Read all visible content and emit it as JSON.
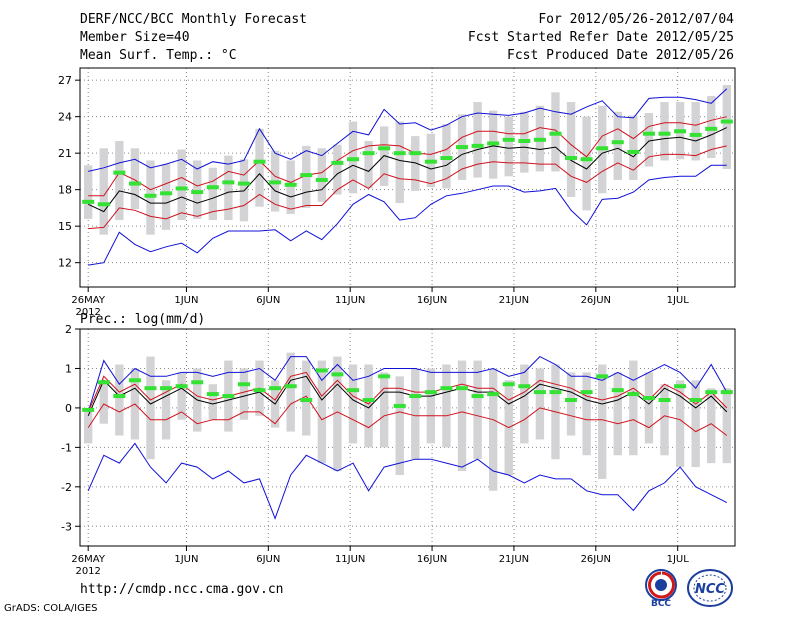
{
  "header": {
    "title": "DERF/NCC/BCC Monthly Forecast",
    "member_size": "Member Size=40",
    "variable": "Mean Surf. Temp.: °C",
    "period": "For 2012/05/26-2012/07/04",
    "fcst_start": "Fcst Started Refer Date 2012/05/25",
    "fcst_produced": "Fcst Produced Date 2012/05/26"
  },
  "footer": {
    "url": "http://cmdp.ncc.cma.gov.cn",
    "grads": "GrADS: COLA/IGES",
    "logo_bcc": "BCC",
    "logo_ncc": "NCC"
  },
  "colors": {
    "box": "#d3d3d6",
    "median": "#000000",
    "spread": "#d0121d",
    "extreme": "#1010d8",
    "observed": "#33e233",
    "grid": "#888888"
  },
  "chart_data": [
    {
      "type": "line",
      "title": "Mean Surf. Temp.: °C",
      "ylim": [
        10,
        28
      ],
      "yticks": [
        12,
        15,
        18,
        21,
        24,
        27
      ],
      "xlim": [
        0.5,
        40.5
      ],
      "xticks": [
        {
          "x": 1,
          "label": "26MAY"
        },
        {
          "x": 7,
          "label": "1JUN"
        },
        {
          "x": 12,
          "label": "6JUN"
        },
        {
          "x": 17,
          "label": "11JUN"
        },
        {
          "x": 22,
          "label": "16JUN"
        },
        {
          "x": 27,
          "label": "21JUN"
        },
        {
          "x": 32,
          "label": "26JUN"
        },
        {
          "x": 37,
          "label": "1JUL"
        }
      ],
      "year_label": "2012",
      "series": [
        {
          "name": "median",
          "values": [
            16.8,
            16.2,
            17.9,
            17.6,
            16.9,
            16.9,
            17.4,
            16.9,
            17.3,
            17.8,
            17.9,
            19.3,
            17.9,
            17.4,
            17.8,
            18.0,
            19.3,
            20.0,
            19.5,
            20.8,
            20.4,
            20.2,
            19.7,
            20.0,
            20.9,
            21.3,
            21.6,
            21.4,
            21.5,
            21.3,
            21.5,
            20.4,
            19.7,
            21.0,
            21.4,
            20.7,
            22.0,
            22.2,
            22.3,
            22.0,
            22.5,
            23.1
          ]
        },
        {
          "name": "upper",
          "values": [
            17.5,
            17.5,
            19.4,
            18.8,
            18.0,
            18.5,
            19.0,
            18.3,
            18.7,
            19.5,
            19.2,
            20.4,
            19.1,
            18.6,
            19.2,
            19.4,
            20.4,
            21.2,
            21.6,
            21.7,
            21.6,
            21.0,
            20.9,
            21.3,
            22.3,
            22.8,
            22.8,
            22.6,
            22.6,
            23.1,
            22.9,
            21.7,
            20.7,
            22.4,
            23.0,
            22.2,
            23.2,
            23.5,
            23.5,
            23.3,
            23.7,
            24.0
          ]
        },
        {
          "name": "lower",
          "values": [
            14.8,
            14.9,
            16.5,
            16.3,
            15.8,
            15.6,
            16.1,
            15.8,
            16.2,
            16.4,
            16.7,
            17.6,
            16.8,
            16.4,
            16.7,
            16.7,
            18.0,
            18.8,
            18.1,
            19.3,
            18.9,
            18.8,
            18.5,
            18.9,
            19.7,
            20.1,
            20.3,
            20.2,
            20.2,
            20.1,
            20.1,
            19.1,
            18.6,
            19.5,
            20.2,
            19.6,
            20.7,
            20.9,
            20.9,
            20.8,
            21.3,
            21.6
          ]
        },
        {
          "name": "max",
          "values": [
            19.5,
            19.8,
            20.2,
            20.5,
            19.8,
            20.1,
            20.5,
            19.7,
            20.3,
            20.1,
            20.4,
            23.0,
            21.0,
            20.5,
            21.2,
            20.8,
            21.8,
            22.8,
            22.5,
            24.6,
            23.4,
            23.5,
            22.9,
            23.3,
            24.0,
            24.3,
            24.2,
            24.1,
            24.3,
            24.7,
            24.4,
            24.2,
            24.8,
            25.3,
            24.0,
            23.9,
            25.5,
            25.6,
            25.6,
            25.4,
            25.1,
            26.3
          ]
        },
        {
          "name": "min",
          "values": [
            11.8,
            12.0,
            14.5,
            13.5,
            12.9,
            13.3,
            13.6,
            12.8,
            14.0,
            14.6,
            14.6,
            14.6,
            14.7,
            13.8,
            14.6,
            13.9,
            15.2,
            16.8,
            17.6,
            17.0,
            15.5,
            15.7,
            16.8,
            17.5,
            17.7,
            18.0,
            18.3,
            18.3,
            17.8,
            17.9,
            18.1,
            16.3,
            15.1,
            17.2,
            17.3,
            17.8,
            18.8,
            19.0,
            19.1,
            19.1,
            20.0,
            20.0
          ]
        },
        {
          "name": "box_top",
          "values": [
            20.0,
            21.4,
            22.0,
            21.4,
            20.4,
            20.1,
            21.3,
            20.4,
            19.8,
            20.8,
            20.5,
            23.0,
            21.2,
            20.4,
            21.6,
            21.4,
            21.7,
            23.6,
            22.0,
            23.2,
            23.6,
            22.4,
            22.6,
            23.4,
            24.2,
            25.2,
            24.5,
            24.0,
            24.4,
            24.9,
            26.0,
            25.2,
            24.0,
            24.9,
            24.4,
            24.1,
            24.3,
            25.2,
            25.2,
            25.2,
            25.7,
            26.6
          ]
        },
        {
          "name": "box_bottom",
          "values": [
            15.6,
            14.3,
            15.5,
            16.4,
            14.3,
            14.7,
            15.5,
            15.6,
            15.5,
            15.5,
            15.4,
            16.6,
            16.2,
            16.0,
            16.5,
            17.0,
            17.6,
            17.7,
            18.1,
            18.3,
            16.9,
            17.9,
            18.2,
            18.1,
            18.8,
            19.0,
            18.9,
            19.1,
            19.4,
            19.5,
            19.5,
            17.4,
            16.3,
            17.7,
            18.8,
            18.8,
            19.9,
            20.4,
            20.5,
            20.4,
            20.6,
            19.7
          ]
        },
        {
          "name": "observed",
          "values": [
            17.0,
            16.8,
            19.4,
            18.5,
            17.5,
            17.7,
            18.1,
            17.8,
            18.2,
            18.6,
            18.5,
            20.3,
            18.6,
            18.4,
            19.2,
            18.8,
            20.2,
            20.5,
            21.0,
            21.4,
            21.0,
            21.0,
            20.3,
            20.6,
            21.5,
            21.6,
            21.8,
            22.1,
            22.0,
            22.1,
            22.6,
            20.6,
            20.5,
            21.4,
            21.9,
            21.1,
            22.6,
            22.6,
            22.8,
            22.5,
            23.0,
            23.6
          ]
        }
      ]
    },
    {
      "type": "line",
      "title": "Prec.: log(mm/d)",
      "ylim": [
        -3.5,
        2
      ],
      "yticks": [
        -3,
        -2,
        -1,
        0,
        1,
        2
      ],
      "xlim": [
        0.5,
        40.5
      ],
      "xticks": [
        {
          "x": 1,
          "label": "26MAY"
        },
        {
          "x": 7,
          "label": "1JUN"
        },
        {
          "x": 12,
          "label": "6JUN"
        },
        {
          "x": 17,
          "label": "11JUN"
        },
        {
          "x": 22,
          "label": "16JUN"
        },
        {
          "x": 27,
          "label": "21JUN"
        },
        {
          "x": 32,
          "label": "26JUN"
        },
        {
          "x": 37,
          "label": "1JUL"
        }
      ],
      "year_label": "2012",
      "series": [
        {
          "name": "median",
          "values": [
            -0.2,
            0.7,
            0.3,
            0.5,
            0.1,
            0.3,
            0.5,
            0.2,
            0.1,
            0.2,
            0.3,
            0.4,
            0.1,
            0.7,
            0.8,
            0.2,
            0.6,
            0.2,
            0.0,
            0.4,
            0.4,
            0.3,
            0.3,
            0.4,
            0.5,
            0.4,
            0.4,
            0.1,
            0.3,
            0.6,
            0.5,
            0.4,
            0.2,
            0.1,
            0.2,
            0.4,
            0.1,
            0.5,
            0.3,
            0.0,
            0.3,
            -0.1
          ]
        },
        {
          "name": "upper",
          "values": [
            -0.1,
            0.8,
            0.4,
            0.6,
            0.2,
            0.4,
            0.6,
            0.3,
            0.2,
            0.3,
            0.4,
            0.5,
            0.2,
            0.8,
            0.9,
            0.3,
            0.7,
            0.3,
            0.1,
            0.5,
            0.5,
            0.4,
            0.4,
            0.5,
            0.6,
            0.5,
            0.5,
            0.2,
            0.4,
            0.7,
            0.6,
            0.5,
            0.3,
            0.2,
            0.3,
            0.5,
            0.2,
            0.6,
            0.4,
            0.1,
            0.4,
            0.0
          ]
        },
        {
          "name": "lower",
          "values": [
            -0.5,
            0.1,
            -0.1,
            0.1,
            -0.3,
            -0.3,
            -0.1,
            -0.4,
            -0.3,
            -0.3,
            -0.1,
            -0.1,
            -0.4,
            0.1,
            0.3,
            -0.3,
            -0.1,
            -0.3,
            -0.5,
            -0.2,
            -0.1,
            -0.2,
            -0.2,
            -0.2,
            -0.1,
            -0.2,
            -0.3,
            -0.5,
            -0.3,
            0.0,
            -0.1,
            -0.2,
            -0.3,
            -0.3,
            -0.4,
            -0.3,
            -0.5,
            -0.2,
            -0.3,
            -0.6,
            -0.4,
            -0.7
          ]
        },
        {
          "name": "max",
          "values": [
            -0.1,
            1.2,
            0.6,
            1.0,
            0.8,
            0.8,
            0.9,
            0.9,
            0.8,
            0.9,
            0.9,
            1.0,
            0.7,
            1.3,
            1.3,
            0.7,
            1.1,
            0.7,
            0.8,
            1.0,
            1.0,
            1.0,
            0.9,
            0.9,
            0.9,
            0.9,
            1.0,
            0.8,
            0.9,
            1.3,
            1.1,
            0.8,
            0.8,
            0.7,
            0.9,
            0.7,
            0.9,
            1.1,
            0.9,
            0.5,
            1.1,
            0.4
          ]
        },
        {
          "name": "min",
          "values": [
            -2.1,
            -1.2,
            -1.4,
            -0.9,
            -1.5,
            -1.9,
            -1.4,
            -1.5,
            -1.8,
            -1.6,
            -1.9,
            -1.8,
            -2.8,
            -1.7,
            -1.2,
            -1.4,
            -1.6,
            -1.4,
            -2.1,
            -1.5,
            -1.4,
            -1.3,
            -1.3,
            -1.4,
            -1.5,
            -1.3,
            -1.6,
            -1.7,
            -1.9,
            -1.7,
            -1.8,
            -1.8,
            -2.1,
            -2.2,
            -2.2,
            -2.6,
            -2.1,
            -1.9,
            -1.5,
            -2.0,
            -2.2,
            -2.4
          ]
        },
        {
          "name": "box_top",
          "values": [
            -0.1,
            0.6,
            1.1,
            1.0,
            1.3,
            0.7,
            0.9,
            1.0,
            0.6,
            1.2,
            1.0,
            1.2,
            0.7,
            1.4,
            1.2,
            1.2,
            1.3,
            1.1,
            1.1,
            0.9,
            0.8,
            1.0,
            1.0,
            1.1,
            1.2,
            1.2,
            1.0,
            0.7,
            1.1,
            1.0,
            1.1,
            0.9,
            0.9,
            1.1,
            0.9,
            1.2,
            0.9,
            0.6,
            0.7,
            0.7,
            0.5,
            0.5
          ]
        },
        {
          "name": "box_bottom",
          "values": [
            -0.9,
            -0.4,
            -0.7,
            -0.8,
            -1.3,
            -0.8,
            -0.3,
            -0.6,
            -0.3,
            -0.6,
            -0.3,
            -0.2,
            -0.5,
            -0.6,
            -0.7,
            -1.4,
            -1.6,
            -0.9,
            -1.0,
            -1.0,
            -1.7,
            -1.3,
            -0.9,
            -1.0,
            -1.6,
            -1.3,
            -2.1,
            -1.7,
            -0.9,
            -0.8,
            -1.3,
            -0.7,
            -1.2,
            -1.8,
            -1.2,
            -1.2,
            -0.9,
            -1.2,
            -1.5,
            -1.5,
            -1.4,
            -1.4
          ]
        },
        {
          "name": "observed",
          "values": [
            -0.05,
            0.65,
            0.3,
            0.7,
            0.5,
            0.5,
            0.55,
            0.65,
            0.35,
            0.3,
            0.6,
            0.45,
            0.5,
            0.55,
            0.2,
            0.95,
            0.85,
            0.45,
            0.2,
            0.8,
            0.05,
            0.3,
            0.4,
            0.5,
            0.5,
            0.3,
            0.35,
            0.6,
            0.55,
            0.4,
            0.4,
            0.2,
            0.4,
            0.8,
            0.45,
            0.35,
            0.25,
            0.2,
            0.55,
            0.2,
            0.4,
            0.4
          ]
        }
      ]
    }
  ]
}
